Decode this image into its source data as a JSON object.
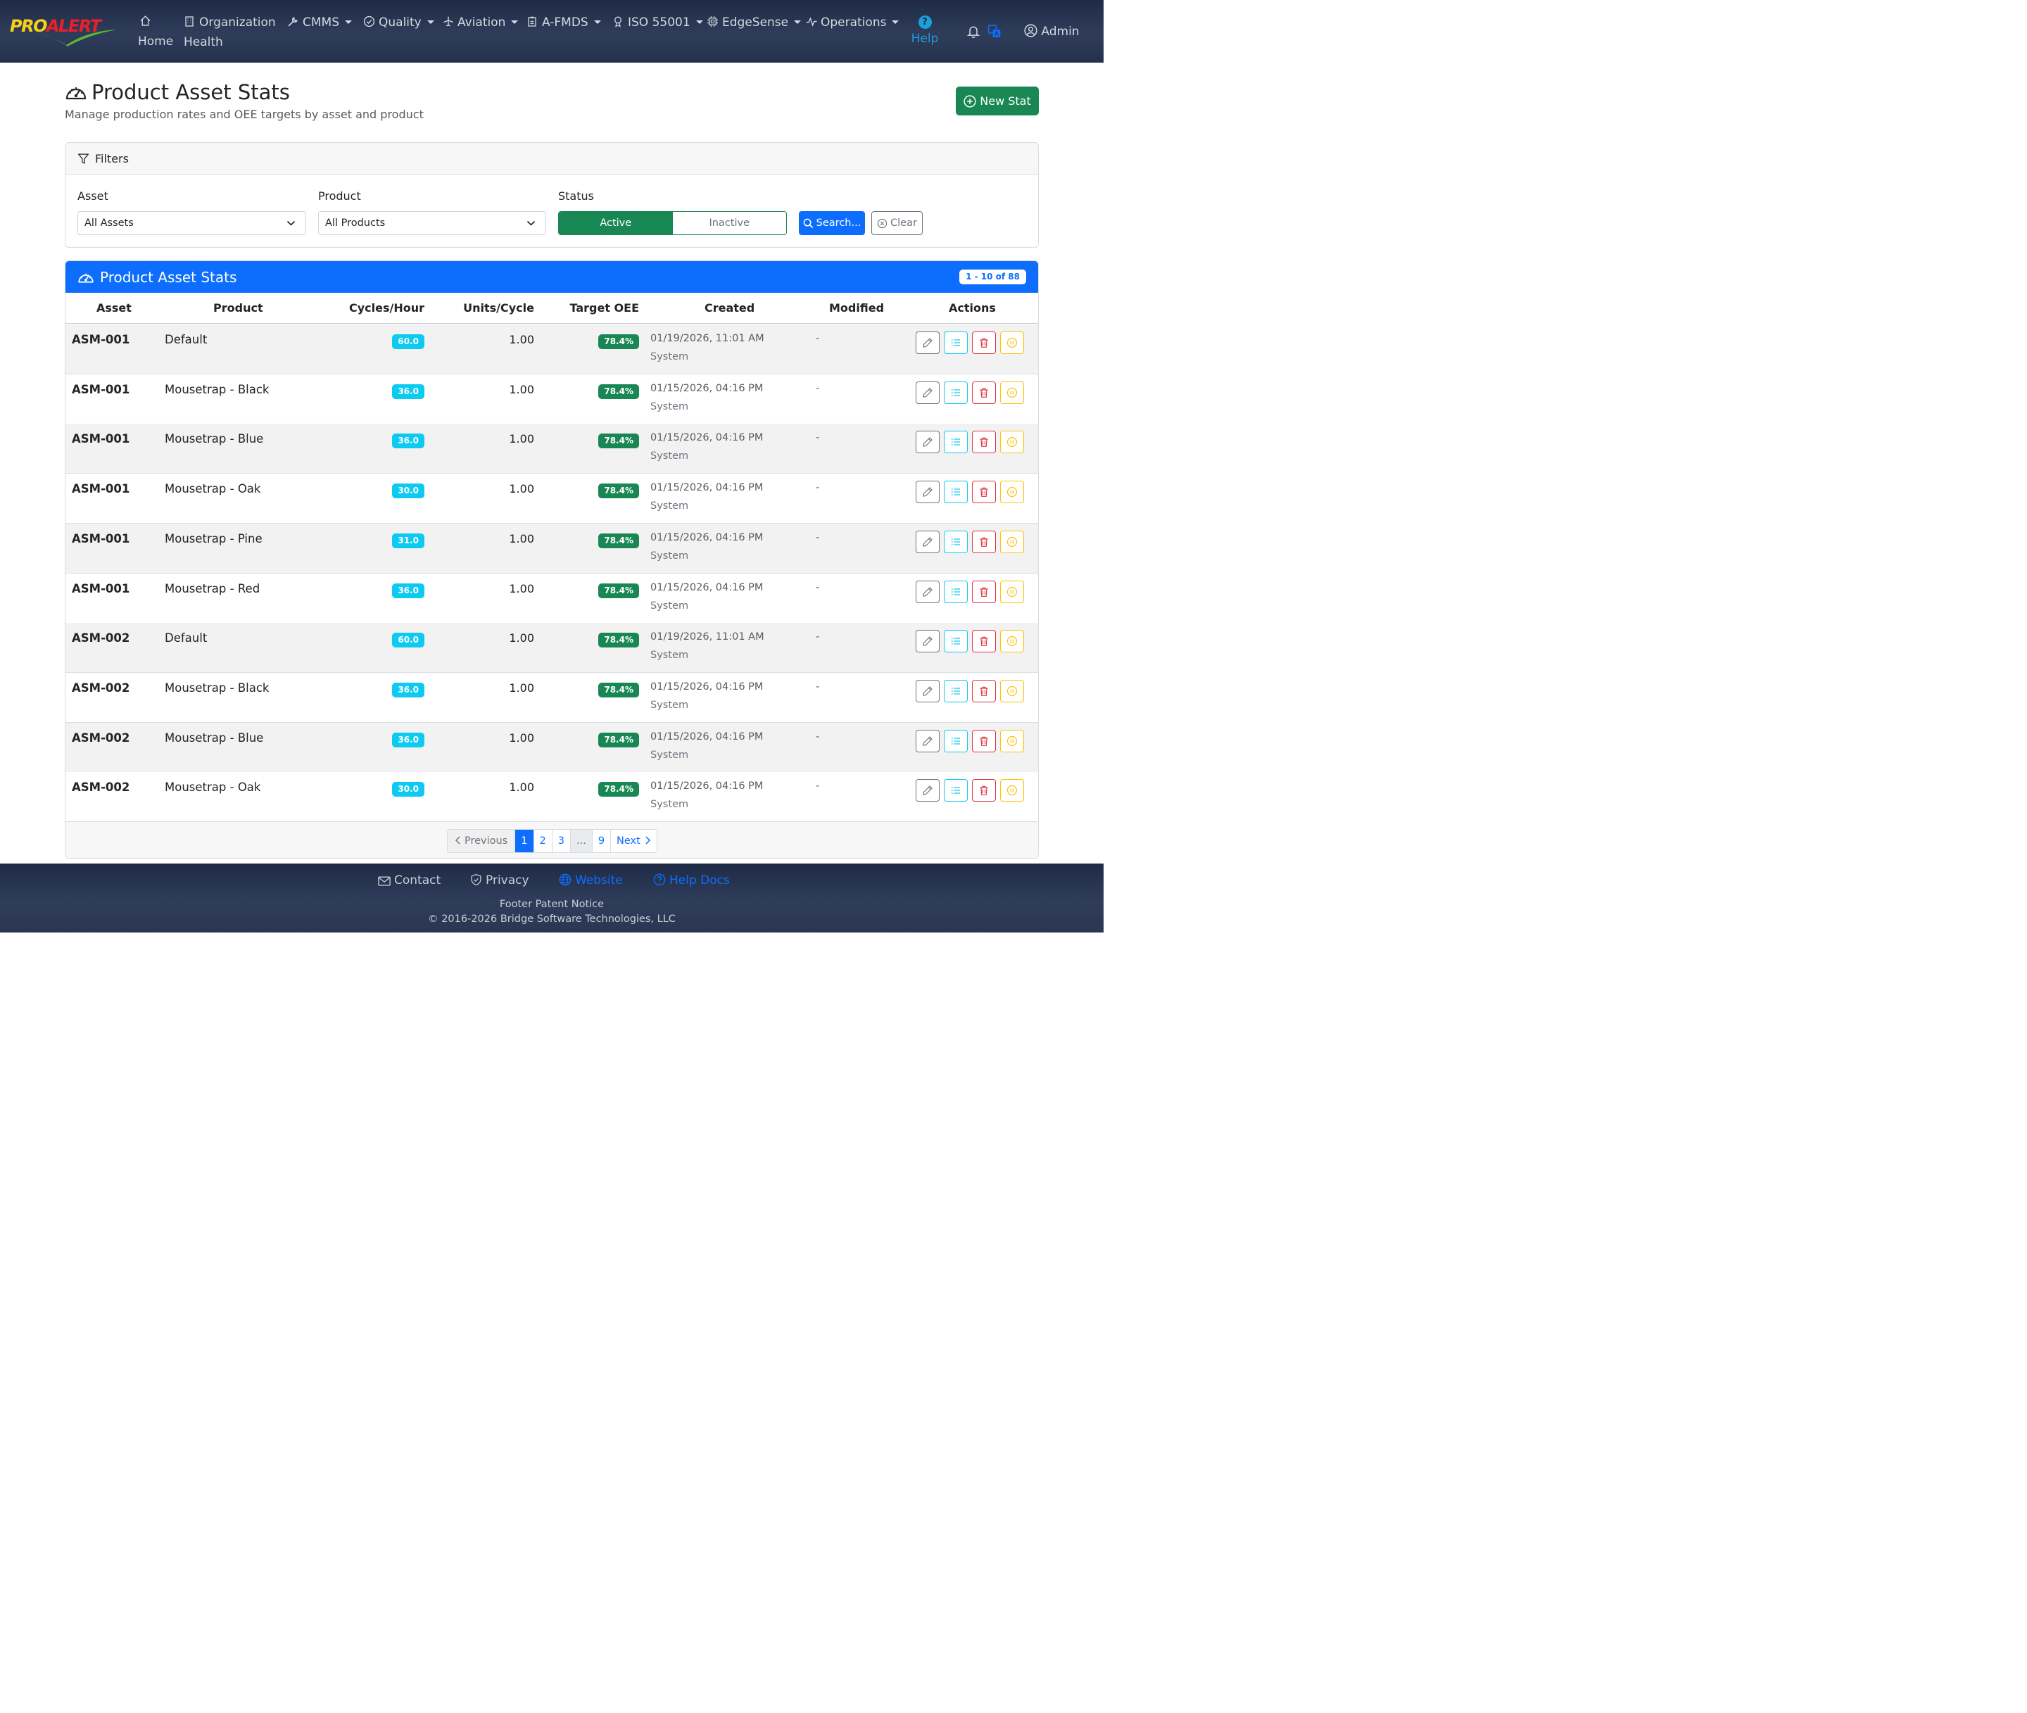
{
  "navbar": {
    "logo": {
      "pro": "PRO",
      "alert": "ALERT"
    },
    "items": [
      {
        "label": "Home",
        "icon": "home-icon"
      },
      {
        "label": "Organization",
        "label2": "Health",
        "icon": "building-icon"
      },
      {
        "label": "CMMS",
        "icon": "wrench-icon"
      },
      {
        "label": "Quality",
        "icon": "check-circle-icon"
      },
      {
        "label": "Aviation",
        "icon": "airplane-icon"
      },
      {
        "label": "A-FMDS",
        "icon": "clipboard-icon"
      },
      {
        "label": "ISO 55001",
        "icon": "award-icon"
      },
      {
        "label": "EdgeSense",
        "icon": "cpu-icon"
      },
      {
        "label": "Operations",
        "icon": "activity-icon"
      }
    ],
    "help_glyph": "?",
    "help_label": "Help",
    "user_label": "Admin"
  },
  "page": {
    "title": "Product Asset Stats",
    "subtitle": "Manage production rates and OEE targets by asset and product",
    "new_button": "New Stat"
  },
  "filters": {
    "header": "Filters",
    "asset_label": "Asset",
    "asset_value": "All Assets",
    "product_label": "Product",
    "product_value": "All Products",
    "status_label": "Status",
    "status_active": "Active",
    "status_inactive": "Inactive",
    "search_button": "Search...",
    "clear_button": "Clear"
  },
  "table": {
    "title": "Product Asset Stats",
    "count": "1 - 10 of 88",
    "columns": {
      "asset": "Asset",
      "product": "Product",
      "cycles": "Cycles/Hour",
      "units": "Units/Cycle",
      "oee": "Target OEE",
      "created": "Created",
      "modified": "Modified",
      "actions": "Actions"
    },
    "rows": [
      {
        "asset": "ASM-001",
        "product": "Default",
        "cycles": "60.0",
        "units": "1.00",
        "oee": "78.4%",
        "created": "01/19/2026, 11:01 AM",
        "created_by": "System",
        "modified": "-"
      },
      {
        "asset": "ASM-001",
        "product": "Mousetrap - Black",
        "cycles": "36.0",
        "units": "1.00",
        "oee": "78.4%",
        "created": "01/15/2026, 04:16 PM",
        "created_by": "System",
        "modified": "-"
      },
      {
        "asset": "ASM-001",
        "product": "Mousetrap - Blue",
        "cycles": "36.0",
        "units": "1.00",
        "oee": "78.4%",
        "created": "01/15/2026, 04:16 PM",
        "created_by": "System",
        "modified": "-"
      },
      {
        "asset": "ASM-001",
        "product": "Mousetrap - Oak",
        "cycles": "30.0",
        "units": "1.00",
        "oee": "78.4%",
        "created": "01/15/2026, 04:16 PM",
        "created_by": "System",
        "modified": "-"
      },
      {
        "asset": "ASM-001",
        "product": "Mousetrap - Pine",
        "cycles": "31.0",
        "units": "1.00",
        "oee": "78.4%",
        "created": "01/15/2026, 04:16 PM",
        "created_by": "System",
        "modified": "-"
      },
      {
        "asset": "ASM-001",
        "product": "Mousetrap - Red",
        "cycles": "36.0",
        "units": "1.00",
        "oee": "78.4%",
        "created": "01/15/2026, 04:16 PM",
        "created_by": "System",
        "modified": "-"
      },
      {
        "asset": "ASM-002",
        "product": "Default",
        "cycles": "60.0",
        "units": "1.00",
        "oee": "78.4%",
        "created": "01/19/2026, 11:01 AM",
        "created_by": "System",
        "modified": "-"
      },
      {
        "asset": "ASM-002",
        "product": "Mousetrap - Black",
        "cycles": "36.0",
        "units": "1.00",
        "oee": "78.4%",
        "created": "01/15/2026, 04:16 PM",
        "created_by": "System",
        "modified": "-"
      },
      {
        "asset": "ASM-002",
        "product": "Mousetrap - Blue",
        "cycles": "36.0",
        "units": "1.00",
        "oee": "78.4%",
        "created": "01/15/2026, 04:16 PM",
        "created_by": "System",
        "modified": "-"
      },
      {
        "asset": "ASM-002",
        "product": "Mousetrap - Oak",
        "cycles": "30.0",
        "units": "1.00",
        "oee": "78.4%",
        "created": "01/15/2026, 04:16 PM",
        "created_by": "System",
        "modified": "-"
      }
    ]
  },
  "pagination": {
    "previous": "Previous",
    "pages": [
      "1",
      "2",
      "3",
      "...",
      "9"
    ],
    "active": "1",
    "next": "Next"
  },
  "footer": {
    "contact": "Contact",
    "privacy": "Privacy",
    "website": "Website",
    "help_docs": "Help Docs",
    "notice": "Footer Patent Notice",
    "copyright": "© 2016-2026 Bridge Software Technologies, LLC"
  },
  "colors": {
    "navbar": "#2a3652",
    "primary": "#0d6efd",
    "success": "#198754",
    "info": "#0dcaf0",
    "danger": "#dc3545",
    "warning": "#ffc107"
  }
}
